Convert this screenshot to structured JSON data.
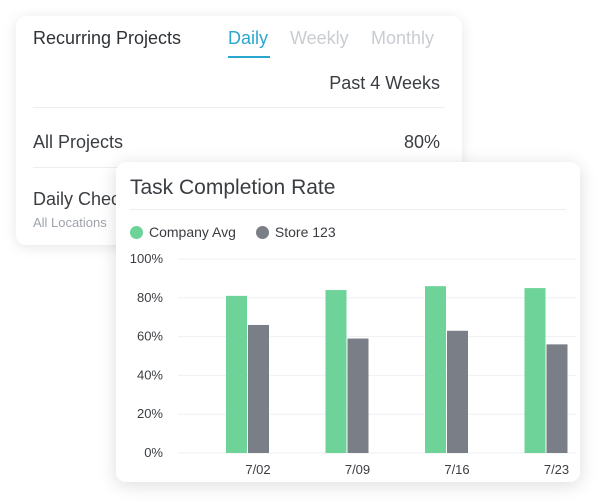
{
  "recurring": {
    "title": "Recurring Projects",
    "tabs": [
      {
        "label": "Daily",
        "active": true
      },
      {
        "label": "Weekly",
        "active": false
      },
      {
        "label": "Monthly",
        "active": false
      }
    ],
    "range": "Past 4 Weeks",
    "rows": [
      {
        "label": "All Projects",
        "value": "80%"
      },
      {
        "label": "Daily Checks",
        "sub": "All Locations"
      }
    ]
  },
  "colors": {
    "accent": "#2ba6cf",
    "company_avg": "#6dd398",
    "store": "#7a7e87"
  },
  "chart_data": {
    "type": "bar",
    "title": "Task Completion Rate",
    "categories": [
      "7/02",
      "7/09",
      "7/16",
      "7/23"
    ],
    "series": [
      {
        "name": "Company Avg",
        "values": [
          81,
          84,
          86,
          85
        ]
      },
      {
        "name": "Store 123",
        "values": [
          66,
          59,
          63,
          56
        ]
      }
    ],
    "ylim": [
      0,
      100
    ],
    "yticks": [
      "0%",
      "20%",
      "40%",
      "60%",
      "80%",
      "100%"
    ],
    "grid": true,
    "legend_position": "top-left"
  }
}
